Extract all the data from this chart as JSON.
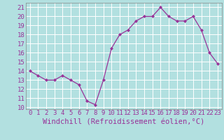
{
  "x": [
    0,
    1,
    2,
    3,
    4,
    5,
    6,
    7,
    8,
    9,
    10,
    11,
    12,
    13,
    14,
    15,
    16,
    17,
    18,
    19,
    20,
    21,
    22,
    23
  ],
  "y": [
    14,
    13.5,
    13,
    13,
    13.5,
    13,
    12.5,
    10.7,
    10.3,
    13,
    16.5,
    18,
    18.5,
    19.5,
    20,
    20,
    21,
    20,
    19.5,
    19.5,
    20,
    18.5,
    16,
    14.8
  ],
  "line_color": "#993399",
  "marker_color": "#993399",
  "bg_color": "#b2e0e0",
  "grid_color": "#ffffff",
  "xlabel": "Windchill (Refroidissement éolien,°C)",
  "xlabel_color": "#993399",
  "tick_color": "#993399",
  "ylim": [
    9.8,
    21.5
  ],
  "xlim": [
    -0.5,
    23.5
  ],
  "yticks": [
    10,
    11,
    12,
    13,
    14,
    15,
    16,
    17,
    18,
    19,
    20,
    21
  ],
  "xticks": [
    0,
    1,
    2,
    3,
    4,
    5,
    6,
    7,
    8,
    9,
    10,
    11,
    12,
    13,
    14,
    15,
    16,
    17,
    18,
    19,
    20,
    21,
    22,
    23
  ],
  "font_family": "monospace",
  "font_size_ticks": 6.5,
  "font_size_xlabel": 7.5
}
